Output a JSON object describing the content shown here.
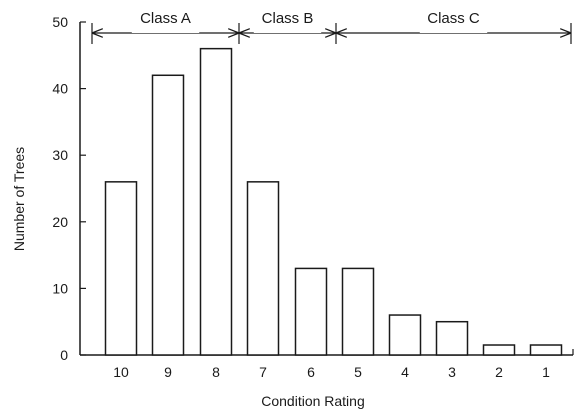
{
  "chart_data": {
    "type": "bar",
    "title": "",
    "xlabel": "Condition Rating",
    "ylabel": "Number of Trees",
    "categories": [
      "10",
      "9",
      "8",
      "7",
      "6",
      "5",
      "4",
      "3",
      "2",
      "1"
    ],
    "values": [
      26,
      42,
      46,
      26,
      13,
      13,
      6,
      5,
      1.5,
      1.5
    ],
    "ylim": [
      0,
      50
    ],
    "yticks": [
      0,
      10,
      20,
      30,
      40,
      50
    ],
    "grid": false,
    "legend": "none",
    "annotations": [
      {
        "label": "Class A",
        "from": "10",
        "to": "8"
      },
      {
        "label": "Class B",
        "from": "7",
        "to": "6"
      },
      {
        "label": "Class C",
        "from": "5",
        "to": "1"
      }
    ],
    "colors": {
      "bar_fill": "#ffffff",
      "stroke": "#1a1a1a"
    }
  }
}
